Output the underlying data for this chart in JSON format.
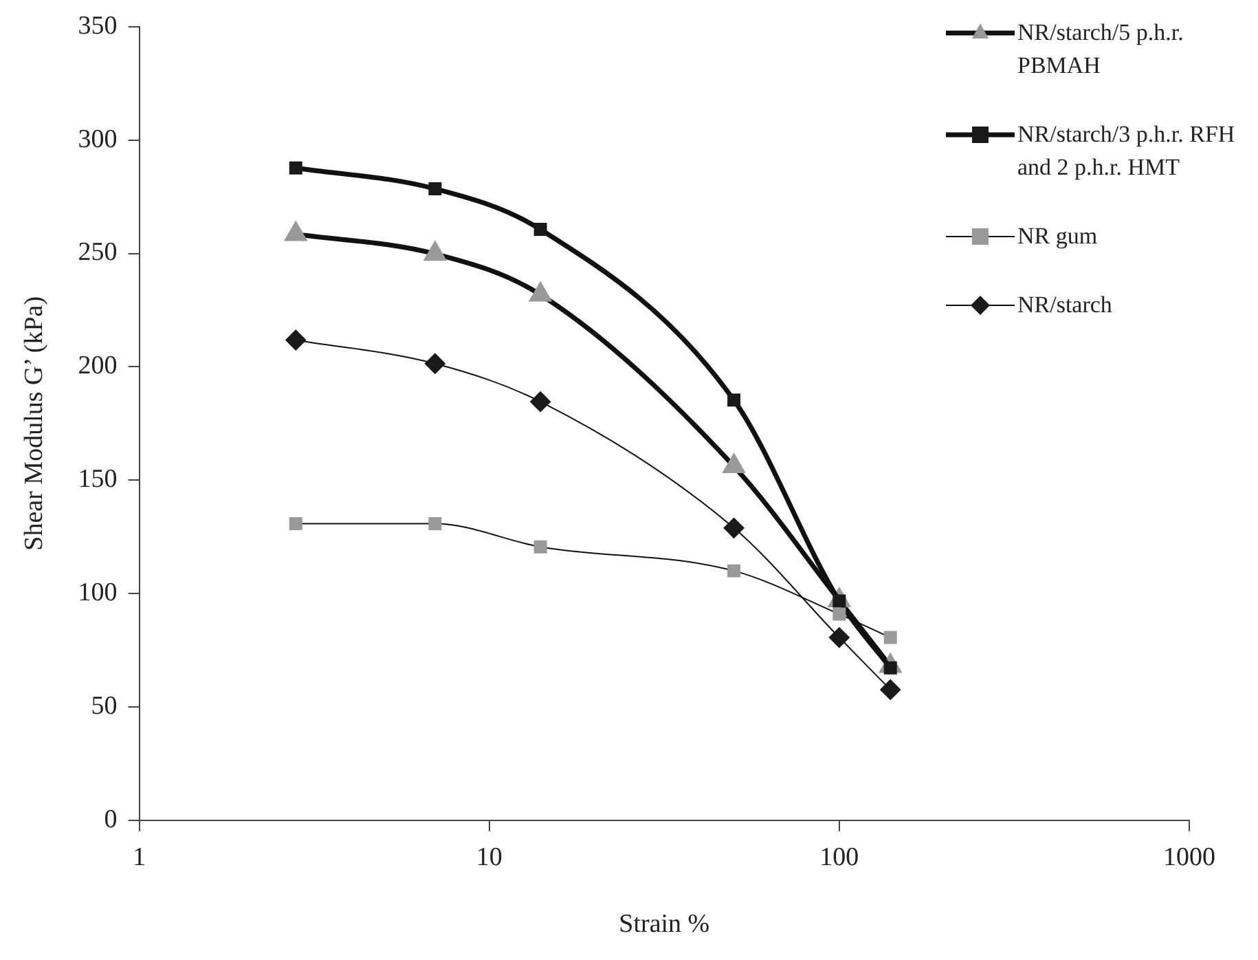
{
  "chart_data": {
    "type": "line",
    "xlabel": "Strain %",
    "ylabel": "Shear Modulus G’ (kPa)",
    "log": "x",
    "xlim": [
      1,
      1000
    ],
    "xticks": [
      1,
      10,
      100,
      1000
    ],
    "ylim": [
      0,
      350
    ],
    "yticks": [
      0,
      50,
      100,
      150,
      200,
      250,
      300,
      350
    ],
    "grid": false,
    "legend": "top right",
    "line_style": "solid",
    "series": [
      {
        "name": "NR/starch/5 p.h.r. PBMAH",
        "color": "#999999",
        "marker": "triangle",
        "x": [
          2.8,
          7,
          14,
          50,
          100,
          140
        ],
        "values": [
          258.5,
          249.8,
          231.8,
          156.1,
          97,
          68
        ]
      },
      {
        "name": "NR/starch/3 p.h.r. RFH and 2 p.h.r. HMT",
        "color": "#1a1a1a",
        "marker": "square",
        "x": [
          2.8,
          7,
          14,
          50,
          100,
          140
        ],
        "values": [
          287.7,
          278.5,
          260.6,
          185.3,
          96.7,
          67.2
        ]
      },
      {
        "name": "NR gum",
        "color": "#999999",
        "marker": "square",
        "x": [
          2.8,
          7,
          14,
          50,
          100,
          140
        ],
        "values": [
          130.8,
          130.8,
          120.6,
          110,
          90.9,
          80.6
        ]
      },
      {
        "name": "NR/starch",
        "color": "#1a1a1a",
        "marker": "diamond",
        "x": [
          2.8,
          7,
          14,
          50,
          100,
          140
        ],
        "values": [
          211.8,
          201.4,
          184.6,
          128.9,
          80.6,
          57.6
        ]
      }
    ]
  }
}
